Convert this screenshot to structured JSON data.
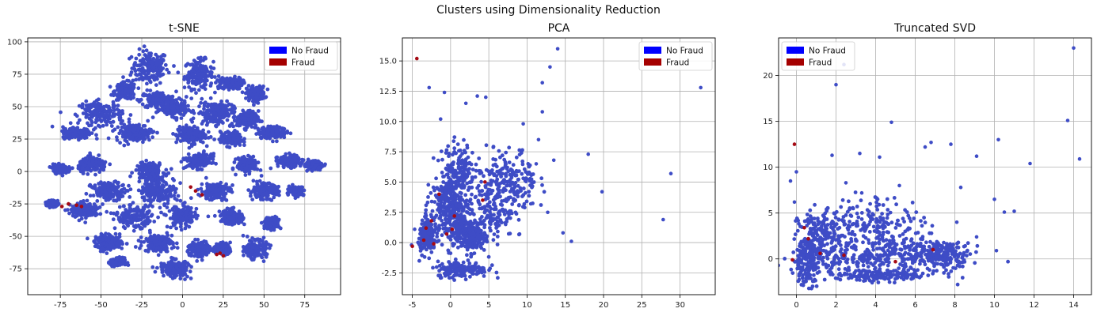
{
  "figure": {
    "suptitle": "Clusters using Dimensionality Reduction"
  },
  "colors": {
    "no_fraud": "#3e4cc6",
    "fraud": "#a50a14",
    "legend_no_fraud": "#0000ff",
    "legend_fraud": "#a50000",
    "grid": "#b0b0b0"
  },
  "chart_data": [
    {
      "type": "scatter",
      "title": "t-SNE",
      "xlabel": "",
      "ylabel": "",
      "xlim": [
        -95,
        97
      ],
      "ylim": [
        -95,
        103
      ],
      "xticks": [
        -75,
        -50,
        -25,
        0,
        25,
        50,
        75
      ],
      "yticks": [
        -75,
        -50,
        -25,
        0,
        25,
        50,
        75,
        100
      ],
      "grid": true,
      "legend_position": "upper right",
      "legend": [
        "No Fraud",
        "Fraud"
      ],
      "series": [
        {
          "name": "No Fraud",
          "clusters": [
            [
              -20,
              80,
              10,
              12
            ],
            [
              10,
              75,
              8,
              10
            ],
            [
              -35,
              62,
              6,
              6
            ],
            [
              -15,
              55,
              10,
              6
            ],
            [
              30,
              68,
              6,
              4
            ],
            [
              45,
              60,
              5,
              5
            ],
            [
              -50,
              45,
              12,
              8
            ],
            [
              -5,
              48,
              7,
              5
            ],
            [
              20,
              45,
              10,
              8
            ],
            [
              40,
              40,
              6,
              6
            ],
            [
              -65,
              30,
              8,
              4
            ],
            [
              -30,
              30,
              10,
              6
            ],
            [
              5,
              28,
              8,
              6
            ],
            [
              30,
              25,
              6,
              5
            ],
            [
              55,
              30,
              8,
              4
            ],
            [
              -75,
              2,
              4,
              3
            ],
            [
              -55,
              5,
              8,
              5
            ],
            [
              -20,
              0,
              8,
              6
            ],
            [
              10,
              8,
              7,
              5
            ],
            [
              40,
              5,
              6,
              5
            ],
            [
              65,
              8,
              6,
              4
            ],
            [
              -45,
              -15,
              10,
              6
            ],
            [
              -15,
              -15,
              10,
              8
            ],
            [
              20,
              -15,
              8,
              6
            ],
            [
              50,
              -15,
              8,
              5
            ],
            [
              70,
              -15,
              4,
              3
            ],
            [
              -60,
              -30,
              8,
              5
            ],
            [
              -30,
              -35,
              10,
              8
            ],
            [
              0,
              -35,
              8,
              8
            ],
            [
              30,
              -35,
              6,
              5
            ],
            [
              -45,
              -55,
              8,
              5
            ],
            [
              -15,
              -55,
              8,
              6
            ],
            [
              10,
              -60,
              6,
              6
            ],
            [
              45,
              -60,
              6,
              6
            ],
            [
              -5,
              -75,
              8,
              6
            ],
            [
              80,
              5,
              5,
              3
            ],
            [
              -80,
              -25,
              3,
              2
            ],
            [
              25,
              -60,
              4,
              4
            ],
            [
              55,
              -40,
              4,
              4
            ],
            [
              -40,
              -70,
              4,
              3
            ]
          ]
        },
        {
          "name": "Fraud",
          "points": [
            [
              -62,
              -27
            ],
            [
              -65,
              -26
            ],
            [
              -70,
              -25
            ],
            [
              -74,
              -27
            ],
            [
              8,
              -15
            ],
            [
              5,
              -12
            ],
            [
              12,
              -18
            ],
            [
              23,
              -63
            ],
            [
              21,
              -64
            ],
            [
              25,
              -65
            ]
          ]
        }
      ]
    },
    {
      "type": "scatter",
      "title": "PCA",
      "xlabel": "",
      "ylabel": "",
      "xlim": [
        -6.3,
        34.6
      ],
      "ylim": [
        -4.3,
        16.9
      ],
      "xticks": [
        -5,
        0,
        5,
        10,
        15,
        20,
        25,
        30
      ],
      "yticks": [
        -2.5,
        0.0,
        2.5,
        5.0,
        7.5,
        10.0,
        12.5,
        15.0
      ],
      "ytick_labels": [
        "-2.5",
        "0.0",
        "2.5",
        "5.0",
        "7.5",
        "10.0",
        "12.5",
        "15.0"
      ],
      "grid": true,
      "legend_position": "upper right",
      "legend": [
        "No Fraud",
        "Fraud"
      ],
      "series": [
        {
          "name": "No Fraud",
          "clusters": [
            [
              0.5,
              1.5,
              2.6,
              1.8
            ],
            [
              1.5,
              -2.2,
              3.0,
              0.6
            ],
            [
              -0.5,
              3.5,
              1.8,
              1.5
            ],
            [
              2.5,
              0.5,
              2.0,
              1.2
            ],
            [
              5,
              3,
              3,
              2.5
            ],
            [
              1,
              6,
              2,
              2
            ],
            [
              8,
              5,
              3,
              2.5
            ],
            [
              -3,
              0.5,
              1,
              1.2
            ]
          ],
          "points": [
            [
              14,
              16
            ],
            [
              32.7,
              12.8
            ],
            [
              13,
              14.5
            ],
            [
              12,
              13.2
            ],
            [
              -2.8,
              12.8
            ],
            [
              -0.8,
              12.4
            ],
            [
              3.5,
              12.1
            ],
            [
              4.6,
              12
            ],
            [
              2,
              11.5
            ],
            [
              18,
              7.3
            ],
            [
              28.8,
              5.7
            ],
            [
              19.8,
              4.2
            ],
            [
              27.8,
              1.9
            ],
            [
              15.8,
              0.1
            ],
            [
              12,
              10.8
            ],
            [
              9.5,
              9.8
            ],
            [
              11.5,
              8.5
            ],
            [
              13.5,
              6.8
            ],
            [
              10.5,
              3.2
            ],
            [
              14.7,
              0.8
            ],
            [
              8.5,
              2.5
            ],
            [
              -4.7,
              1.1
            ],
            [
              -5.1,
              -0.2
            ],
            [
              12.7,
              2.5
            ],
            [
              11.2,
              6.5
            ],
            [
              7.2,
              1.5
            ],
            [
              -1.3,
              10.2
            ],
            [
              6,
              5.5
            ]
          ]
        },
        {
          "name": "Fraud",
          "points": [
            [
              -4.4,
              15.2
            ],
            [
              -5,
              -0.3
            ],
            [
              -0.5,
              0.7
            ],
            [
              -3.2,
              1.2
            ],
            [
              4.5,
              5
            ],
            [
              -1.5,
              4
            ],
            [
              -2.5,
              1.8
            ],
            [
              0.5,
              2.2
            ],
            [
              4.2,
              3.5
            ],
            [
              -3.5,
              0.2
            ],
            [
              -2.2,
              -0.1
            ],
            [
              0.2,
              1.1
            ]
          ]
        }
      ]
    },
    {
      "type": "scatter",
      "title": "Truncated SVD",
      "xlabel": "",
      "ylabel": "",
      "xlim": [
        -0.9,
        14.9
      ],
      "ylim": [
        -3.9,
        24.1
      ],
      "xticks": [
        0,
        2,
        4,
        6,
        8,
        10,
        12,
        14
      ],
      "yticks": [
        0,
        5,
        10,
        15,
        20
      ],
      "grid": true,
      "legend_position": "upper left",
      "legend": [
        "No Fraud",
        "Fraud"
      ],
      "series": [
        {
          "name": "No Fraud",
          "clusters": [
            [
              3,
              0.3,
              2.6,
              1.6
            ],
            [
              4.2,
              -1.8,
              2.8,
              0.6
            ],
            [
              5.5,
              0.6,
              2.2,
              1.8
            ],
            [
              1.2,
              2.5,
              1.0,
              2.5
            ],
            [
              7.5,
              0.5,
              1.2,
              1.2
            ],
            [
              4,
              4,
              2.2,
              2.5
            ],
            [
              0.5,
              0,
              0.6,
              2.5
            ]
          ],
          "points": [
            [
              14,
              23
            ],
            [
              2.4,
              21.2
            ],
            [
              2,
              19
            ],
            [
              13.7,
              15.1
            ],
            [
              4.8,
              14.9
            ],
            [
              10.2,
              13
            ],
            [
              14.3,
              10.9
            ],
            [
              11.8,
              10.4
            ],
            [
              11,
              5.2
            ],
            [
              10.5,
              5.1
            ],
            [
              10,
              6.5
            ],
            [
              9.1,
              11.2
            ],
            [
              8.3,
              7.8
            ],
            [
              7.8,
              12.5
            ],
            [
              6.8,
              12.7
            ],
            [
              6.5,
              12.2
            ],
            [
              0,
              9.5
            ],
            [
              -0.3,
              8.5
            ],
            [
              5.2,
              8
            ],
            [
              1.8,
              11.3
            ],
            [
              3.2,
              11.5
            ],
            [
              4.2,
              11.1
            ],
            [
              -0.1,
              6.2
            ],
            [
              10.1,
              0.9
            ],
            [
              9.1,
              2.4
            ],
            [
              8.1,
              4
            ],
            [
              3.3,
              7.2
            ],
            [
              2.5,
              8.3
            ]
          ]
        },
        {
          "name": "Fraud",
          "points": [
            [
              -0.1,
              12.5
            ],
            [
              0.4,
              3.4
            ],
            [
              2.4,
              0.4
            ],
            [
              6.9,
              1
            ],
            [
              5,
              -0.3
            ],
            [
              -0.2,
              -0.1
            ],
            [
              1.2,
              0.6
            ],
            [
              0.6,
              2.2
            ]
          ]
        }
      ]
    }
  ]
}
